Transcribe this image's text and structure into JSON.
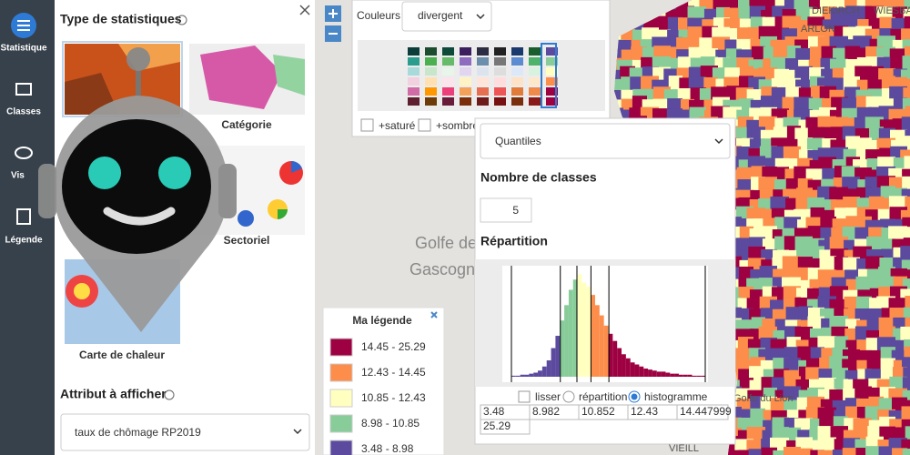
{
  "sidebar": {
    "items": [
      "Statistique",
      "Classes",
      "Vis",
      "Légende"
    ]
  },
  "stat_panel": {
    "title": "Type de statistiques",
    "types": [
      "Catégorie",
      "Sectoriel",
      "Carte de chaleur"
    ],
    "attribute_label": "Attribut à afficher",
    "attribute_value": "taux de chômage RP2019"
  },
  "map": {
    "labels": [
      "Golfe de",
      "Gascogne",
      "DIEKIRCH",
      "ARLON",
      "WIESBA",
      "Golfe du Lion",
      "VIEILL"
    ]
  },
  "color_panel": {
    "label": "Couleurs :",
    "scheme": "divergent",
    "options": [
      "+saturé",
      "+sombre"
    ]
  },
  "class_panel": {
    "method": "Quantiles",
    "count_label": "Nombre de classes",
    "count": 5,
    "distribution_label": "Répartition",
    "histogram": {
      "counts": [
        1,
        1,
        2,
        2,
        3,
        4,
        6,
        10,
        16,
        28,
        40,
        55,
        70,
        85,
        95,
        100,
        92,
        88,
        80,
        70,
        60,
        50,
        42,
        35,
        28,
        22,
        18,
        14,
        12,
        10,
        8,
        7,
        6,
        5,
        5,
        4,
        3,
        3,
        2,
        2,
        2,
        1,
        1,
        1
      ],
      "ylim": [
        0,
        105
      ]
    },
    "display_options": [
      "lisser",
      "répartition",
      "histogramme"
    ],
    "selected_option": 2,
    "breaks": [
      3.48,
      8.982,
      10.852,
      12.43,
      14.447999,
      25.29
    ]
  },
  "legend": {
    "title": "Ma légende",
    "items": [
      {
        "label": "14.45 - 25.29",
        "color": "#9e0142"
      },
      {
        "label": "12.43 - 14.45",
        "color": "#fd8d4b"
      },
      {
        "label": "10.85 - 12.43",
        "color": "#ffffbf"
      },
      {
        "label": "8.98 - 10.85",
        "color": "#88cc99"
      },
      {
        "label": "3.48 - 8.98",
        "color": "#5b4a9e"
      }
    ]
  }
}
